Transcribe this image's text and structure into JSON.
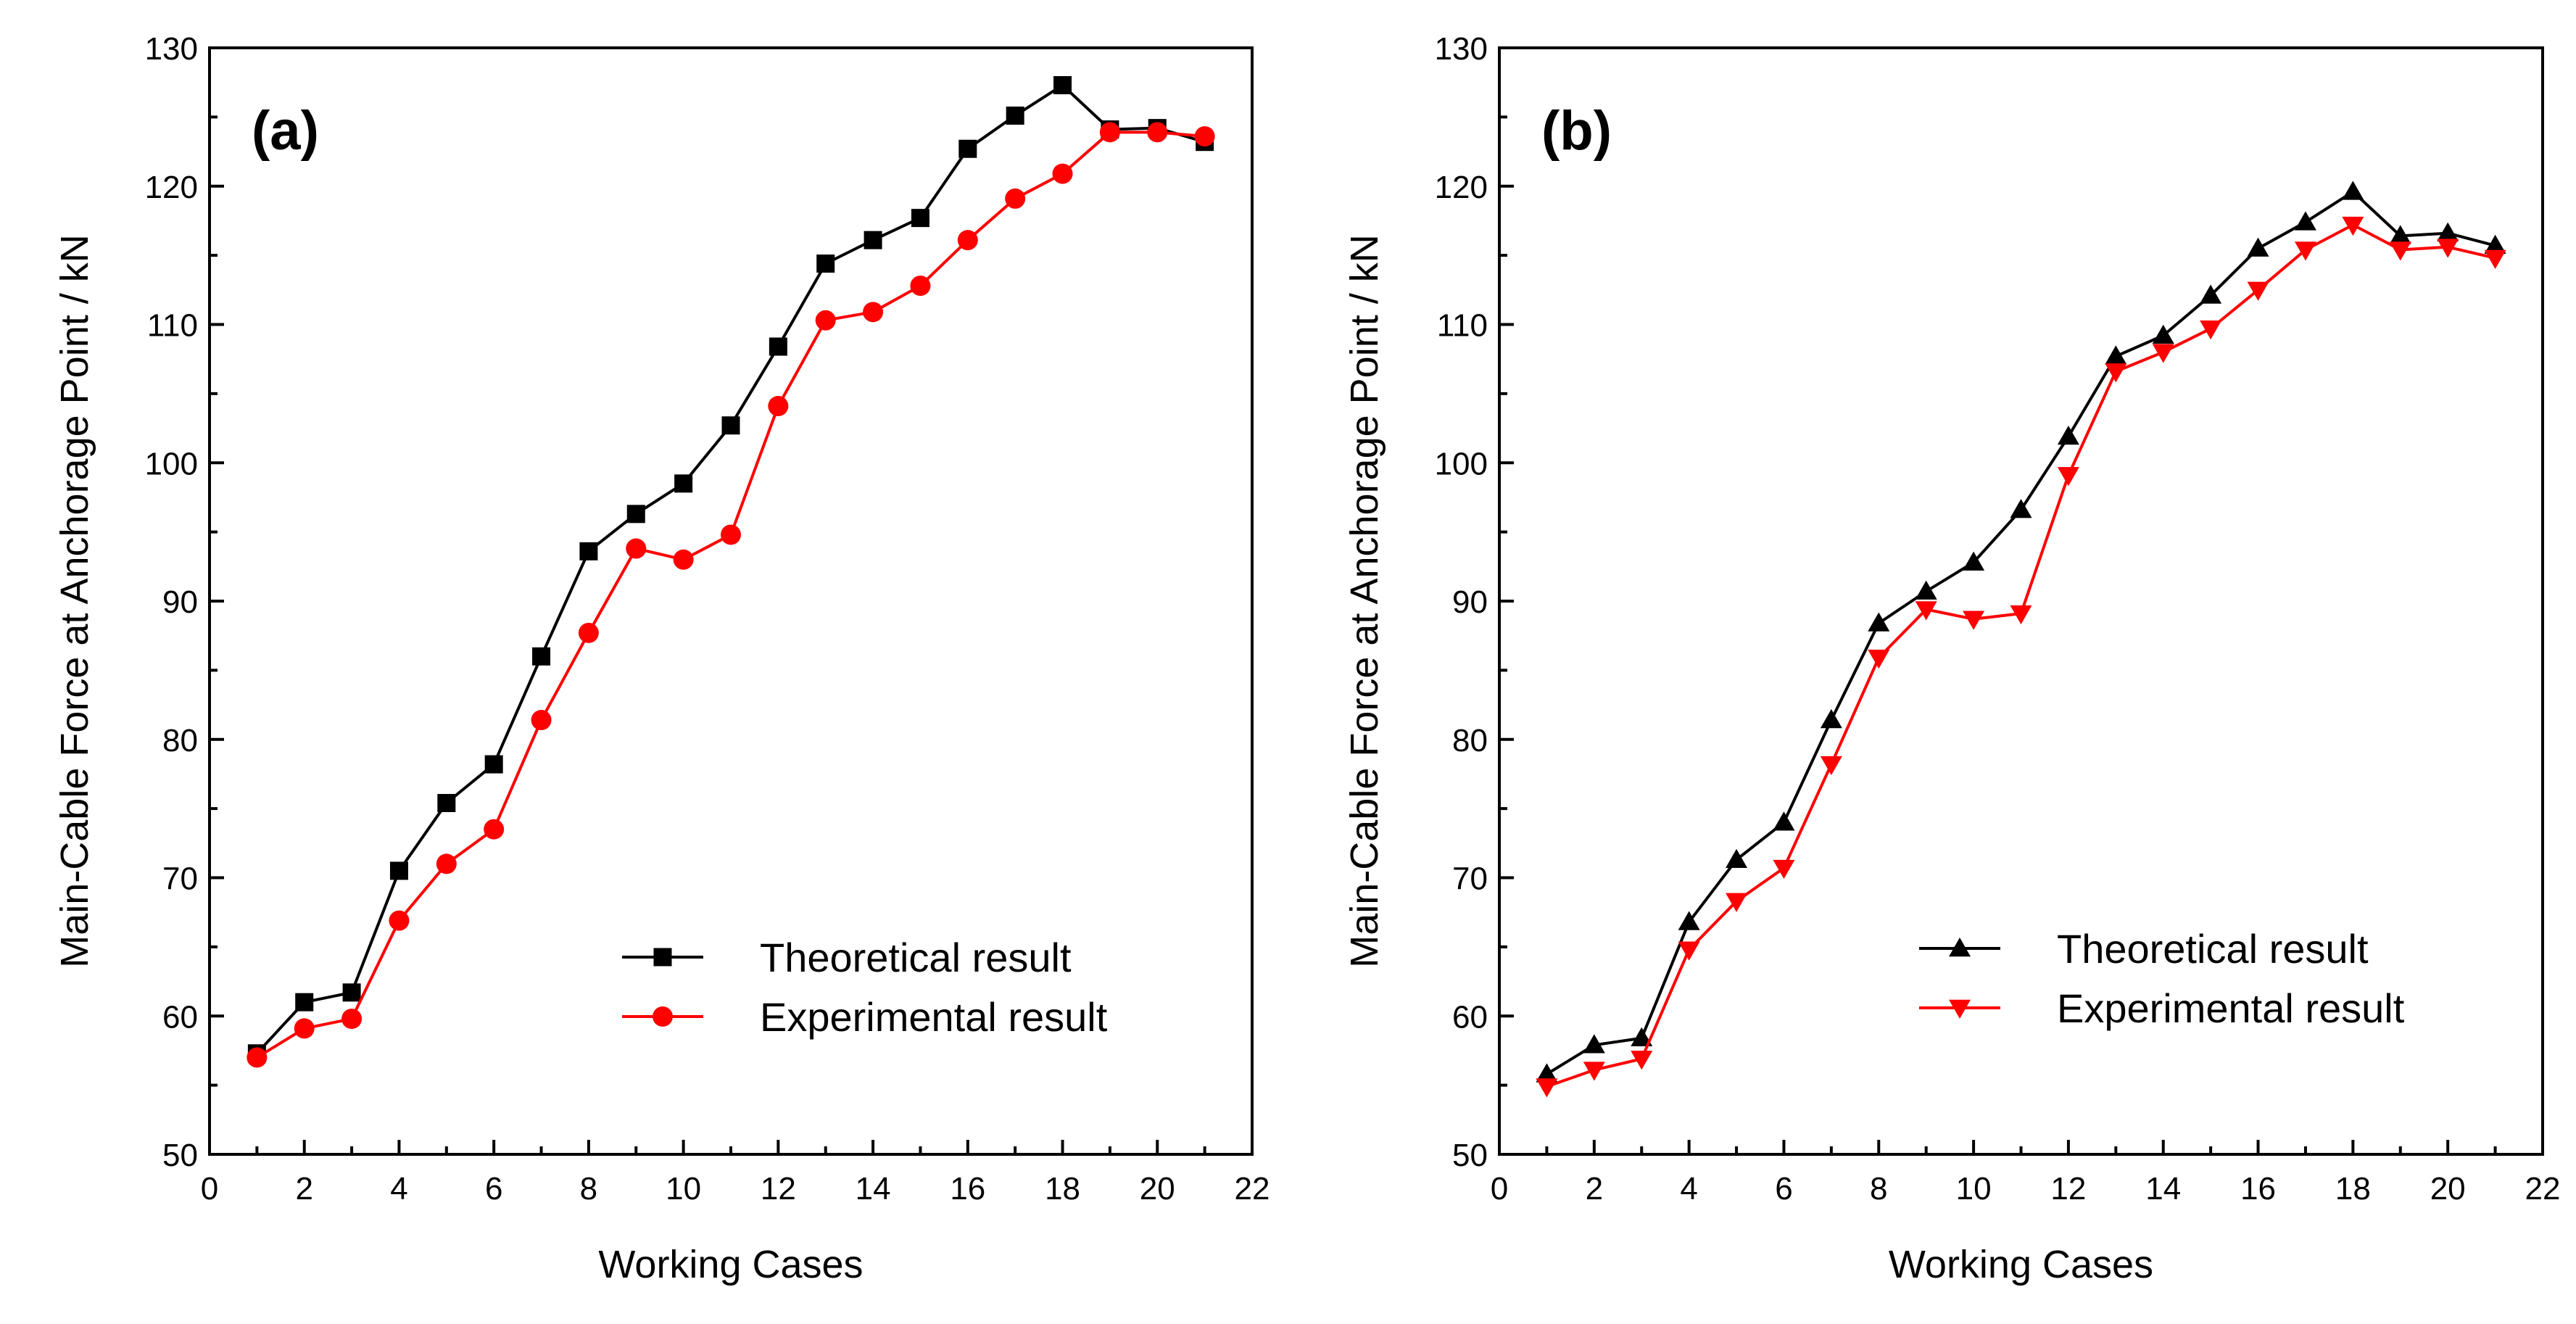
{
  "chart_data": [
    {
      "type": "line",
      "panel_label": "(a)",
      "xlabel": "Working Cases",
      "ylabel": "Main-Cable Force at Anchorage Point / kN",
      "xlim": [
        0,
        22
      ],
      "ylim": [
        50,
        130
      ],
      "xticks": [
        0,
        2,
        4,
        6,
        8,
        10,
        12,
        14,
        16,
        18,
        20,
        22
      ],
      "yticks": [
        50,
        60,
        70,
        80,
        90,
        100,
        110,
        120,
        130
      ],
      "grid": false,
      "legend_position": "bottom-right",
      "x": [
        1,
        2,
        3,
        4,
        5,
        6,
        7,
        8,
        9,
        10,
        11,
        12,
        13,
        14,
        15,
        16,
        17,
        18,
        19,
        20,
        21
      ],
      "series": [
        {
          "name": "Theoretical result",
          "color": "#000000",
          "marker": "square",
          "values": [
            57.3,
            61.0,
            61.7,
            70.5,
            75.4,
            78.2,
            86.0,
            93.6,
            96.3,
            98.5,
            102.7,
            108.4,
            114.4,
            116.1,
            117.7,
            122.7,
            125.1,
            127.3,
            124.1,
            124.2,
            123.2
          ]
        },
        {
          "name": "Experimental result",
          "color": "#ff0000",
          "marker": "circle",
          "values": [
            57.0,
            59.1,
            59.8,
            66.9,
            71.0,
            73.5,
            81.4,
            87.7,
            93.8,
            93.0,
            94.8,
            104.1,
            110.3,
            110.9,
            112.8,
            116.1,
            119.1,
            120.9,
            123.9,
            123.9,
            123.6
          ]
        }
      ]
    },
    {
      "type": "line",
      "panel_label": "(b)",
      "xlabel": "Working Cases",
      "ylabel": "Main-Cable Force at Anchorage Point / kN",
      "xlim": [
        0,
        22
      ],
      "ylim": [
        50,
        130
      ],
      "xticks": [
        0,
        2,
        4,
        6,
        8,
        10,
        12,
        14,
        16,
        18,
        20,
        22
      ],
      "yticks": [
        50,
        60,
        70,
        80,
        90,
        100,
        110,
        120,
        130
      ],
      "grid": false,
      "legend_position": "bottom-right",
      "x": [
        1,
        2,
        3,
        4,
        5,
        6,
        7,
        8,
        9,
        10,
        11,
        12,
        13,
        14,
        15,
        16,
        17,
        18,
        19,
        20,
        21
      ],
      "series": [
        {
          "name": "Theoretical result",
          "color": "#000000",
          "marker": "triangle-up",
          "values": [
            55.8,
            57.9,
            58.4,
            66.8,
            71.3,
            74.0,
            81.4,
            88.4,
            90.7,
            92.8,
            96.6,
            101.9,
            107.7,
            109.2,
            112.1,
            115.5,
            117.4,
            119.6,
            116.4,
            116.6,
            115.7
          ]
        },
        {
          "name": "Experimental result",
          "color": "#ff0000",
          "marker": "triangle-down",
          "values": [
            54.9,
            56.1,
            56.9,
            64.8,
            68.3,
            70.7,
            78.2,
            85.9,
            89.4,
            88.7,
            89.1,
            99.1,
            106.6,
            108.0,
            109.7,
            112.5,
            115.4,
            117.2,
            115.4,
            115.6,
            114.8
          ]
        }
      ]
    }
  ]
}
